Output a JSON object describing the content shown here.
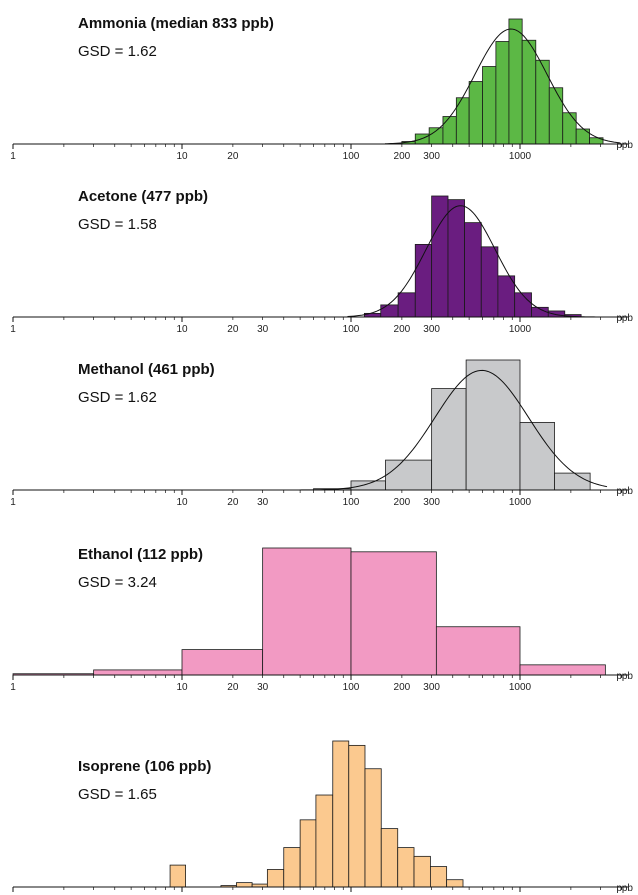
{
  "chart_data": [
    {
      "type": "bar",
      "title": "Ammonia (median 833 ppb)",
      "annotation": "GSD = 1.62",
      "x_scale": "log",
      "xlim": [
        1,
        4000
      ],
      "tick_labels": [
        "1",
        "10",
        "20",
        "100",
        "200",
        "300",
        "1000"
      ],
      "unit": "ppb",
      "color": "#5cb845",
      "edges": [
        200,
        240,
        290,
        350,
        420,
        500,
        600,
        720,
        860,
        1030,
        1240,
        1490,
        1790,
        2150,
        2580,
        3100
      ],
      "values": [
        0.02,
        0.08,
        0.13,
        0.22,
        0.37,
        0.5,
        0.62,
        0.82,
        1.0,
        0.83,
        0.67,
        0.45,
        0.25,
        0.12,
        0.05
      ],
      "fit_curve": "log-normal"
    },
    {
      "type": "bar",
      "title": "Acetone (477 ppb)",
      "annotation": "GSD = 1.58",
      "x_scale": "log",
      "xlim": [
        1,
        4000
      ],
      "tick_labels": [
        "1",
        "10",
        "20",
        "30",
        "100",
        "200",
        "300",
        "1000"
      ],
      "unit": "ppb",
      "color": "#6a1d80",
      "edges": [
        120,
        150,
        190,
        240,
        300,
        375,
        470,
        590,
        740,
        930,
        1170,
        1470,
        1840,
        2300
      ],
      "values": [
        0.03,
        0.1,
        0.2,
        0.6,
        1.0,
        0.97,
        0.78,
        0.58,
        0.34,
        0.2,
        0.08,
        0.05,
        0.02
      ],
      "fit_curve": "log-normal"
    },
    {
      "type": "bar",
      "title": "Methanol (461 ppb)",
      "annotation": "GSD = 1.62",
      "x_scale": "log",
      "xlim": [
        1,
        4000
      ],
      "tick_labels": [
        "1",
        "10",
        "20",
        "30",
        "100",
        "200",
        "300",
        "1000"
      ],
      "unit": "ppb",
      "color": "#c8c9cb",
      "edges": [
        60,
        100,
        160,
        300,
        480,
        1000,
        1600,
        2600
      ],
      "values": [
        0.01,
        0.07,
        0.23,
        0.78,
        1.0,
        0.52,
        0.13
      ],
      "fit_curve": "log-normal"
    },
    {
      "type": "bar",
      "title": "Ethanol (112 ppb)",
      "annotation": "GSD = 3.24",
      "x_scale": "log",
      "xlim": [
        1,
        4000
      ],
      "tick_labels": [
        "1",
        "10",
        "20",
        "30",
        "100",
        "200",
        "300",
        "1000"
      ],
      "unit": "ppb",
      "color": "#f29ac3",
      "edges": [
        1,
        3,
        10,
        30,
        100,
        320,
        1000,
        3200
      ],
      "values": [
        0.01,
        0.04,
        0.2,
        1.0,
        0.97,
        0.38,
        0.08
      ],
      "fit_curve": "none"
    },
    {
      "type": "bar",
      "title": "Isoprene (106 ppb)",
      "annotation": "GSD = 1.65",
      "x_scale": "log",
      "xlim": [
        1,
        4000
      ],
      "tick_labels": [
        "1",
        "10",
        "20",
        "30",
        "100",
        "200",
        "300",
        "1000"
      ],
      "unit": "ppb",
      "color": "#fbc98f",
      "edges": [
        8.5,
        10.5,
        17,
        21,
        26,
        32,
        40,
        50,
        62,
        78,
        97,
        121,
        151,
        189,
        236,
        295,
        368,
        460
      ],
      "values": [
        0.15,
        0,
        0.01,
        0.03,
        0.02,
        0.12,
        0.27,
        0.46,
        0.63,
        1.0,
        0.97,
        0.81,
        0.4,
        0.27,
        0.21,
        0.14,
        0.05
      ],
      "fit_curve": "none"
    }
  ]
}
